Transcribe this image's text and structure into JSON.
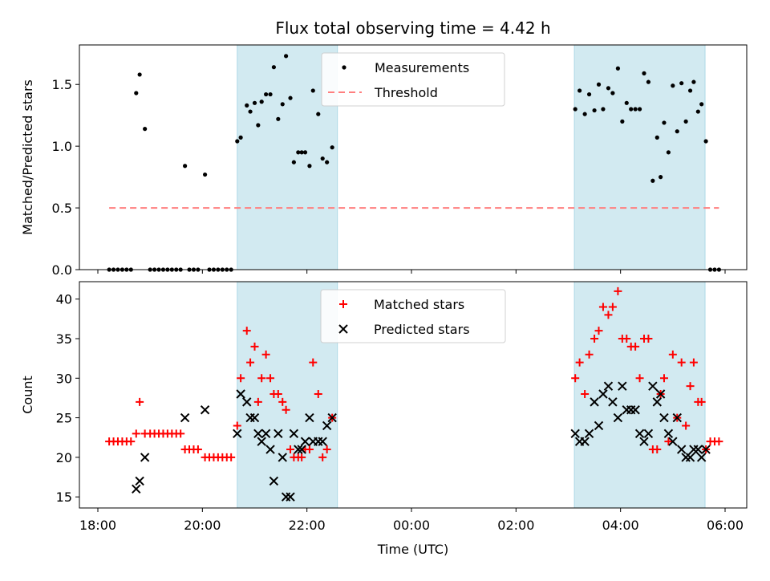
{
  "chart_data": {
    "title": "Flux total observing time = 4.42 h",
    "xlabel": "Time (UTC)",
    "x_ticks": [
      "18:00",
      "20:00",
      "22:00",
      "00:00",
      "02:00",
      "04:00",
      "06:00"
    ],
    "shaded_intervals": [
      [
        "20:40",
        "22:35"
      ],
      [
        "03:07",
        "05:37"
      ]
    ],
    "shade_color": "#add8e6",
    "grid": false,
    "panels": [
      {
        "type": "scatter",
        "ylabel": "Matched/Predicted stars",
        "y_ticks": [
          "0.0",
          "0.5",
          "1.0",
          "1.5"
        ],
        "ylim": [
          0,
          1.82
        ],
        "legend_position": "top-center",
        "series": [
          {
            "name": "Measurements",
            "marker": "dot",
            "color": "#000000",
            "points": [
              [
                "18:13",
                0
              ],
              [
                "18:18",
                0
              ],
              [
                "18:23",
                0
              ],
              [
                "18:28",
                0
              ],
              [
                "18:33",
                0
              ],
              [
                "18:38",
                0
              ],
              [
                "18:44",
                1.43
              ],
              [
                "18:48",
                1.58
              ],
              [
                "18:54",
                1.14
              ],
              [
                "19:00",
                0
              ],
              [
                "19:05",
                0
              ],
              [
                "19:10",
                0
              ],
              [
                "19:15",
                0
              ],
              [
                "19:20",
                0
              ],
              [
                "19:25",
                0
              ],
              [
                "19:30",
                0
              ],
              [
                "19:35",
                0
              ],
              [
                "19:40",
                0.84
              ],
              [
                "19:45",
                0
              ],
              [
                "19:50",
                0
              ],
              [
                "19:55",
                0
              ],
              [
                "20:03",
                0.77
              ],
              [
                "20:08",
                0
              ],
              [
                "20:13",
                0
              ],
              [
                "20:18",
                0
              ],
              [
                "20:23",
                0
              ],
              [
                "20:28",
                0
              ],
              [
                "20:33",
                0
              ],
              [
                "20:40",
                1.04
              ],
              [
                "20:44",
                1.07
              ],
              [
                "20:51",
                1.33
              ],
              [
                "20:55",
                1.28
              ],
              [
                "21:00",
                1.35
              ],
              [
                "21:04",
                1.17
              ],
              [
                "21:08",
                1.36
              ],
              [
                "21:13",
                1.42
              ],
              [
                "21:18",
                1.42
              ],
              [
                "21:22",
                1.64
              ],
              [
                "21:27",
                1.22
              ],
              [
                "21:32",
                1.34
              ],
              [
                "21:36",
                1.73
              ],
              [
                "21:41",
                1.39
              ],
              [
                "21:45",
                0.87
              ],
              [
                "21:50",
                0.95
              ],
              [
                "21:54",
                0.95
              ],
              [
                "21:58",
                0.95
              ],
              [
                "22:03",
                0.84
              ],
              [
                "22:07",
                1.45
              ],
              [
                "22:13",
                1.26
              ],
              [
                "22:18",
                0.9
              ],
              [
                "22:23",
                0.87
              ],
              [
                "22:29",
                0.99
              ],
              [
                "03:08",
                1.3
              ],
              [
                "03:13",
                1.45
              ],
              [
                "03:19",
                1.26
              ],
              [
                "03:24",
                1.42
              ],
              [
                "03:30",
                1.29
              ],
              [
                "03:35",
                1.5
              ],
              [
                "03:40",
                1.3
              ],
              [
                "03:46",
                1.47
              ],
              [
                "03:51",
                1.43
              ],
              [
                "03:57",
                1.63
              ],
              [
                "04:02",
                1.2
              ],
              [
                "04:07",
                1.35
              ],
              [
                "04:12",
                1.3
              ],
              [
                "04:17",
                1.3
              ],
              [
                "04:22",
                1.3
              ],
              [
                "04:27",
                1.59
              ],
              [
                "04:32",
                1.52
              ],
              [
                "04:37",
                0.72
              ],
              [
                "04:42",
                1.07
              ],
              [
                "04:46",
                0.75
              ],
              [
                "04:50",
                1.19
              ],
              [
                "04:55",
                0.95
              ],
              [
                "05:00",
                1.49
              ],
              [
                "05:05",
                1.12
              ],
              [
                "05:10",
                1.51
              ],
              [
                "05:15",
                1.2
              ],
              [
                "05:20",
                1.45
              ],
              [
                "05:24",
                1.52
              ],
              [
                "05:29",
                1.28
              ],
              [
                "05:33",
                1.34
              ],
              [
                "05:38",
                1.04
              ],
              [
                "05:43",
                0
              ],
              [
                "05:48",
                0
              ],
              [
                "05:53",
                0
              ]
            ]
          },
          {
            "name": "Threshold",
            "marker": "dashed-line",
            "color": "#ff7f7f",
            "points": [
              [
                "18:13",
                0.5
              ],
              [
                "05:53",
                0.5
              ]
            ]
          }
        ]
      },
      {
        "type": "scatter",
        "ylabel": "Count",
        "y_ticks": [
          "15",
          "20",
          "25",
          "30",
          "35",
          "40"
        ],
        "ylim": [
          13.6,
          42.2
        ],
        "legend_position": "top-center",
        "series": [
          {
            "name": "Matched stars",
            "marker": "plus",
            "color": "#ff0000",
            "points": [
              [
                "18:13",
                22
              ],
              [
                "18:18",
                22
              ],
              [
                "18:23",
                22
              ],
              [
                "18:28",
                22
              ],
              [
                "18:33",
                22
              ],
              [
                "18:38",
                22
              ],
              [
                "18:44",
                23
              ],
              [
                "18:48",
                27
              ],
              [
                "18:54",
                23
              ],
              [
                "19:00",
                23
              ],
              [
                "19:05",
                23
              ],
              [
                "19:10",
                23
              ],
              [
                "19:15",
                23
              ],
              [
                "19:20",
                23
              ],
              [
                "19:25",
                23
              ],
              [
                "19:30",
                23
              ],
              [
                "19:35",
                23
              ],
              [
                "19:40",
                21
              ],
              [
                "19:45",
                21
              ],
              [
                "19:50",
                21
              ],
              [
                "19:55",
                21
              ],
              [
                "20:03",
                20
              ],
              [
                "20:08",
                20
              ],
              [
                "20:13",
                20
              ],
              [
                "20:18",
                20
              ],
              [
                "20:23",
                20
              ],
              [
                "20:28",
                20
              ],
              [
                "20:33",
                20
              ],
              [
                "20:40",
                24
              ],
              [
                "20:44",
                30
              ],
              [
                "20:51",
                36
              ],
              [
                "20:55",
                32
              ],
              [
                "21:00",
                34
              ],
              [
                "21:04",
                27
              ],
              [
                "21:08",
                30
              ],
              [
                "21:13",
                33
              ],
              [
                "21:18",
                30
              ],
              [
                "21:22",
                28
              ],
              [
                "21:27",
                28
              ],
              [
                "21:32",
                27
              ],
              [
                "21:36",
                26
              ],
              [
                "21:41",
                21
              ],
              [
                "21:45",
                20
              ],
              [
                "21:50",
                20
              ],
              [
                "21:54",
                20
              ],
              [
                "21:58",
                21
              ],
              [
                "22:03",
                21
              ],
              [
                "22:07",
                32
              ],
              [
                "22:13",
                28
              ],
              [
                "22:18",
                20
              ],
              [
                "22:23",
                21
              ],
              [
                "22:29",
                25
              ],
              [
                "03:08",
                30
              ],
              [
                "03:13",
                32
              ],
              [
                "03:19",
                28
              ],
              [
                "03:24",
                33
              ],
              [
                "03:30",
                35
              ],
              [
                "03:35",
                36
              ],
              [
                "03:40",
                39
              ],
              [
                "03:46",
                38
              ],
              [
                "03:51",
                39
              ],
              [
                "03:57",
                41
              ],
              [
                "04:02",
                35
              ],
              [
                "04:07",
                35
              ],
              [
                "04:12",
                34
              ],
              [
                "04:17",
                34
              ],
              [
                "04:22",
                30
              ],
              [
                "04:27",
                35
              ],
              [
                "04:32",
                35
              ],
              [
                "04:37",
                21
              ],
              [
                "04:42",
                21
              ],
              [
                "04:46",
                28
              ],
              [
                "04:50",
                30
              ],
              [
                "04:55",
                22
              ],
              [
                "05:00",
                33
              ],
              [
                "05:05",
                25
              ],
              [
                "05:10",
                32
              ],
              [
                "05:15",
                24
              ],
              [
                "05:20",
                29
              ],
              [
                "05:24",
                32
              ],
              [
                "05:29",
                27
              ],
              [
                "05:33",
                27
              ],
              [
                "05:38",
                21
              ],
              [
                "05:43",
                22
              ],
              [
                "05:48",
                22
              ],
              [
                "05:53",
                22
              ]
            ]
          },
          {
            "name": "Predicted stars",
            "marker": "x",
            "color": "#000000",
            "points": [
              [
                "18:44",
                16
              ],
              [
                "18:48",
                17
              ],
              [
                "18:54",
                20
              ],
              [
                "19:40",
                25
              ],
              [
                "20:03",
                26
              ],
              [
                "20:40",
                23
              ],
              [
                "20:44",
                28
              ],
              [
                "20:51",
                27
              ],
              [
                "20:55",
                25
              ],
              [
                "21:00",
                25
              ],
              [
                "21:04",
                23
              ],
              [
                "21:08",
                22
              ],
              [
                "21:13",
                23
              ],
              [
                "21:18",
                21
              ],
              [
                "21:22",
                17
              ],
              [
                "21:27",
                23
              ],
              [
                "21:32",
                20
              ],
              [
                "21:36",
                15
              ],
              [
                "21:41",
                15
              ],
              [
                "21:45",
                23
              ],
              [
                "21:50",
                21
              ],
              [
                "21:54",
                21
              ],
              [
                "21:58",
                22
              ],
              [
                "22:03",
                25
              ],
              [
                "22:07",
                22
              ],
              [
                "22:13",
                22
              ],
              [
                "22:18",
                22
              ],
              [
                "22:23",
                24
              ],
              [
                "22:29",
                25
              ],
              [
                "03:08",
                23
              ],
              [
                "03:13",
                22
              ],
              [
                "03:19",
                22
              ],
              [
                "03:24",
                23
              ],
              [
                "03:30",
                27
              ],
              [
                "03:35",
                24
              ],
              [
                "03:40",
                28
              ],
              [
                "03:46",
                29
              ],
              [
                "03:51",
                27
              ],
              [
                "03:57",
                25
              ],
              [
                "04:02",
                29
              ],
              [
                "04:07",
                26
              ],
              [
                "04:12",
                26
              ],
              [
                "04:17",
                26
              ],
              [
                "04:22",
                23
              ],
              [
                "04:27",
                22
              ],
              [
                "04:32",
                23
              ],
              [
                "04:37",
                29
              ],
              [
                "04:42",
                27
              ],
              [
                "04:46",
                28
              ],
              [
                "04:50",
                25
              ],
              [
                "04:55",
                23
              ],
              [
                "05:00",
                22
              ],
              [
                "05:05",
                25
              ],
              [
                "05:10",
                21
              ],
              [
                "05:15",
                20
              ],
              [
                "05:20",
                20
              ],
              [
                "05:24",
                21
              ],
              [
                "05:29",
                21
              ],
              [
                "05:33",
                20
              ],
              [
                "05:38",
                21
              ]
            ]
          }
        ]
      }
    ]
  }
}
